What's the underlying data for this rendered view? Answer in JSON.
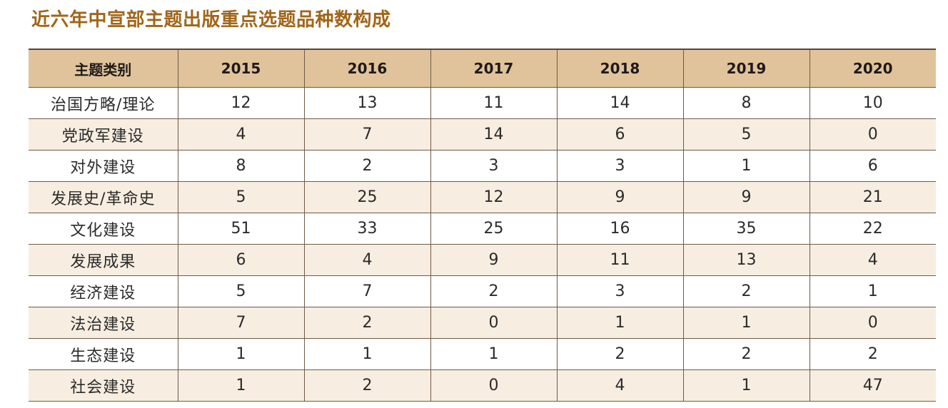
{
  "title": "近六年中宣部主题出版重点选题品种数构成",
  "table": {
    "headers": [
      "主题类别",
      "2015",
      "2016",
      "2017",
      "2018",
      "2019",
      "2020"
    ],
    "rows": [
      [
        "治国方略/理论",
        "12",
        "13",
        "11",
        "14",
        "8",
        "10"
      ],
      [
        "党政军建设",
        "4",
        "7",
        "14",
        "6",
        "5",
        "0"
      ],
      [
        "对外建设",
        "8",
        "2",
        "3",
        "3",
        "1",
        "6"
      ],
      [
        "发展史/革命史",
        "5",
        "25",
        "12",
        "9",
        "9",
        "21"
      ],
      [
        "文化建设",
        "51",
        "33",
        "25",
        "16",
        "35",
        "22"
      ],
      [
        "发展成果",
        "6",
        "4",
        "9",
        "11",
        "13",
        "4"
      ],
      [
        "经济建设",
        "5",
        "7",
        "2",
        "3",
        "2",
        "1"
      ],
      [
        "法治建设",
        "7",
        "2",
        "0",
        "1",
        "1",
        "0"
      ],
      [
        "生态建设",
        "1",
        "1",
        "1",
        "2",
        "2",
        "2"
      ],
      [
        "社会建设",
        "1",
        "2",
        "0",
        "4",
        "1",
        "47"
      ]
    ]
  },
  "colors": {
    "title": "#a0661a",
    "header_bg": "#e0c39b",
    "stripe_bg": "#f7eee1",
    "rule": "#6e5a47"
  }
}
